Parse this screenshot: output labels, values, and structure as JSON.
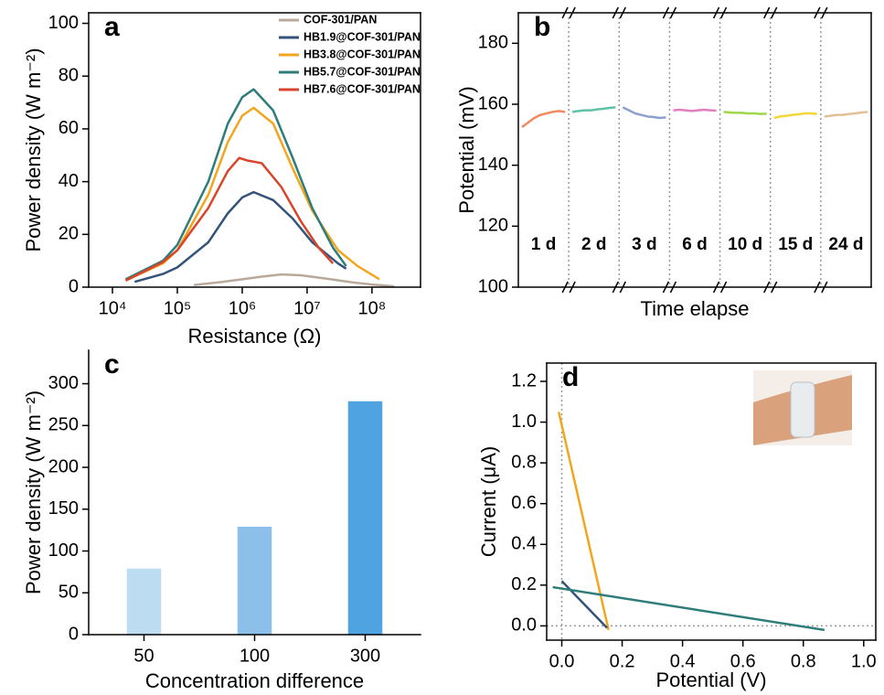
{
  "chart_data": [
    {
      "type": "line",
      "panel_label": "a",
      "xlabel": "Resistance (Ω)",
      "ylabel": "Power density (W m⁻²)",
      "xscale": "log",
      "xlim": [
        4300,
        560000000
      ],
      "xticks": [
        {
          "value": 10000,
          "label": "10⁴"
        },
        {
          "value": 100000,
          "label": "10⁵"
        },
        {
          "value": 1000000,
          "label": "10⁶"
        },
        {
          "value": 10000000,
          "label": "10⁷"
        },
        {
          "value": 100000000,
          "label": "10⁸"
        }
      ],
      "ylim": [
        0,
        104
      ],
      "yticks": [
        0,
        20,
        40,
        60,
        80,
        100
      ],
      "box": true,
      "legend": "upper right",
      "series": [
        {
          "name": "COF-301/PAN",
          "color": "#b9a99b",
          "x": [
            180000,
            500000,
            1000000,
            2000000,
            4000000,
            8000000,
            20000000,
            50000000,
            100000000,
            220000000
          ],
          "values": [
            0.8,
            2.0,
            3.0,
            4.0,
            4.8,
            4.5,
            3.2,
            1.8,
            1.0,
            0.3
          ]
        },
        {
          "name": "HB1.9@COF-301/PAN",
          "color": "#34537a",
          "x": [
            22000,
            60000,
            100000,
            300000,
            600000,
            1000000,
            1500000,
            3000000,
            6000000,
            12000000,
            30000000,
            40000000
          ],
          "values": [
            2,
            5,
            7.5,
            17,
            28,
            34,
            36,
            33,
            26,
            17,
            9,
            7
          ]
        },
        {
          "name": "HB3.8@COF-301/PAN",
          "color": "#f2a61e",
          "x": [
            16000,
            60000,
            100000,
            300000,
            600000,
            1000000,
            1500000,
            3000000,
            6000000,
            12000000,
            30000000,
            60000000,
            130000000
          ],
          "values": [
            2.5,
            9,
            14,
            35,
            55,
            65,
            68,
            62,
            45,
            29,
            14,
            8,
            3
          ]
        },
        {
          "name": "HB5.7@COF-301/PAN",
          "color": "#2e7d7b",
          "x": [
            16000,
            60000,
            100000,
            300000,
            600000,
            1000000,
            1500000,
            3000000,
            6000000,
            12000000,
            25000000,
            40000000
          ],
          "values": [
            3,
            10,
            16,
            40,
            62,
            72,
            75,
            67,
            49,
            30,
            15,
            8
          ]
        },
        {
          "name": "HB7.6@COF-301/PAN",
          "color": "#d9452a",
          "x": [
            16000,
            60000,
            100000,
            300000,
            600000,
            900000,
            1200000,
            2000000,
            4000000,
            8000000,
            15000000,
            25000000
          ],
          "values": [
            2.5,
            9.5,
            14,
            30,
            44,
            49,
            48,
            47,
            38,
            25,
            15,
            9
          ]
        }
      ]
    },
    {
      "type": "line",
      "panel_label": "b",
      "xlabel": "Time elapse",
      "ylabel": "Potential (mV)",
      "ylim": [
        100,
        190
      ],
      "yticks": [
        100,
        120,
        140,
        160,
        180
      ],
      "box": true,
      "axis_breaks": true,
      "series": [
        {
          "name": "1 d",
          "color": "#f08a5d",
          "values": [
            152.5,
            154,
            155.5,
            156.5,
            157,
            157.5,
            157.8,
            157.5
          ]
        },
        {
          "name": "2 d",
          "color": "#5cc3a6",
          "values": [
            157.5,
            157.8,
            158,
            158,
            158.3,
            158.5,
            158.8,
            159
          ]
        },
        {
          "name": "3 d",
          "color": "#8c9fd0",
          "values": [
            159,
            158,
            157,
            156.5,
            156,
            155.8,
            155.5,
            155.7
          ]
        },
        {
          "name": "6 d",
          "color": "#e27ec0",
          "values": [
            158,
            158.2,
            158,
            157.8,
            158,
            158.2,
            158,
            157.9
          ]
        },
        {
          "name": "10 d",
          "color": "#9ed84a",
          "values": [
            157.5,
            157.3,
            157.2,
            157.2,
            157,
            157,
            156.8,
            156.9
          ]
        },
        {
          "name": "15 d",
          "color": "#f5d63a",
          "values": [
            155.5,
            156,
            156.2,
            156.5,
            156.7,
            157,
            157,
            156.8
          ]
        },
        {
          "name": "24 d",
          "color": "#e0c096",
          "values": [
            156,
            156.2,
            156.5,
            156.5,
            156.8,
            157,
            157.3,
            157.5
          ]
        }
      ]
    },
    {
      "type": "bar",
      "panel_label": "c",
      "xlabel": "Concentration difference",
      "ylabel": "Power density (W m⁻²)",
      "categories": [
        "50",
        "100",
        "300"
      ],
      "values": [
        79,
        129,
        279
      ],
      "colors": [
        "#bcdcf2",
        "#8cc0ea",
        "#4ea3e0"
      ],
      "ylim": [
        0,
        340
      ],
      "yticks": [
        0,
        50,
        100,
        150,
        200,
        250,
        300
      ],
      "box": false
    },
    {
      "type": "line",
      "panel_label": "d",
      "xlabel": "Potential (V)",
      "ylabel": "Current (μA)",
      "xlim": [
        -0.05,
        1.04
      ],
      "xticks": [
        {
          "value": 0,
          "label": "0.0"
        },
        0.2,
        0.4,
        0.6,
        0.8,
        {
          "value": 1,
          "label": "1.0"
        }
      ],
      "ylim": [
        -0.07,
        1.29
      ],
      "yticks": [
        {
          "value": 0,
          "label": "0.0"
        },
        0.2,
        0.4,
        0.6,
        0.8,
        {
          "value": 1,
          "label": "1.0"
        },
        1.2
      ],
      "box": true,
      "zero_lines": true,
      "series": [
        {
          "color": "#f2a61e",
          "x": [
            -0.01,
            0.155
          ],
          "values": [
            1.05,
            -0.02
          ]
        },
        {
          "color": "#34537a",
          "x": [
            0.0,
            0.15
          ],
          "values": [
            0.22,
            -0.01
          ]
        },
        {
          "color": "#2e7d7b",
          "x": [
            -0.03,
            0.87
          ],
          "values": [
            0.19,
            -0.02
          ]
        }
      ]
    }
  ]
}
